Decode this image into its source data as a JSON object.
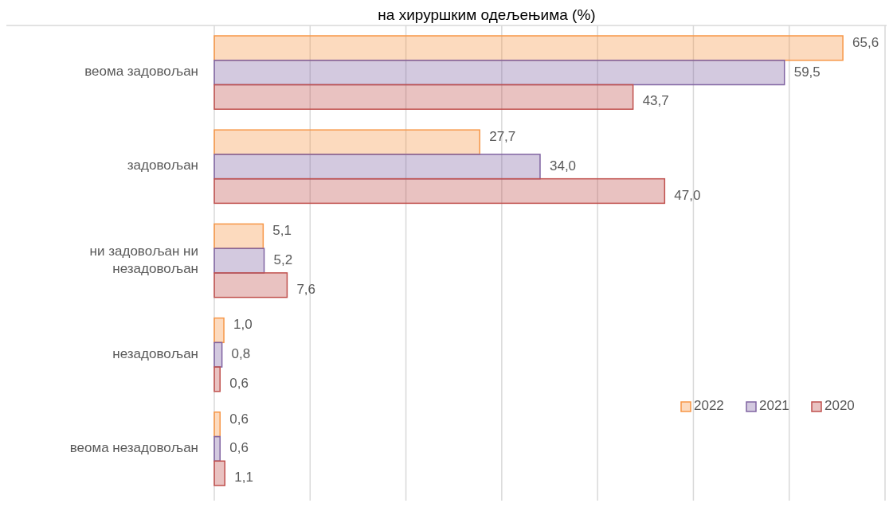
{
  "chart_data": {
    "type": "bar",
    "orientation": "horizontal",
    "title": "на хируршким одељењима (%)",
    "categories": [
      "веома задовољан",
      "задовољан",
      "ни задовољан ни незадовољан",
      "незадовољан",
      "веома незадовољан"
    ],
    "series": [
      {
        "name": "2022",
        "color": "#f79646",
        "values": [
          65.6,
          27.7,
          5.1,
          1.0,
          0.6
        ],
        "value_labels": [
          "65,6",
          "27,7",
          "5,1",
          "1,0",
          "0,6"
        ]
      },
      {
        "name": "2021",
        "color": "#8064a2",
        "values": [
          59.5,
          34.0,
          5.2,
          0.8,
          0.6
        ],
        "value_labels": [
          "59,5",
          "34,0",
          "5,2",
          "0,8",
          "0,6"
        ]
      },
      {
        "name": "2020",
        "color": "#c0504d",
        "values": [
          43.7,
          47.0,
          7.6,
          0.6,
          1.1
        ],
        "value_labels": [
          "43,7",
          "47,0",
          "7,6",
          "0,6",
          "1,1"
        ]
      }
    ],
    "xlim": [
      0,
      70
    ],
    "xticks": [
      {
        "value": 0,
        "label": null
      },
      {
        "value": 10,
        "label": null
      },
      {
        "value": 20,
        "label": null
      },
      {
        "value": 30,
        "label": null
      },
      {
        "value": 40,
        "label": null
      },
      {
        "value": 50,
        "label": null
      },
      {
        "value": 60,
        "label": null
      },
      {
        "value": 70,
        "label": null
      }
    ],
    "tick_labels": "y",
    "grid": "x",
    "legend": "bottom right"
  }
}
